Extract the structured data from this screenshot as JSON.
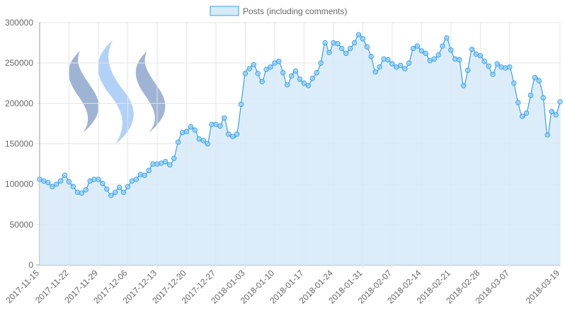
{
  "chart_data": {
    "type": "area",
    "legend": {
      "position": "top-center",
      "label": "Posts (including comments)"
    },
    "colors": {
      "line": "#36a2eb",
      "fill": "#d6eaf8",
      "point_fill": "#9ad0f5",
      "grid": "#e5e5e5",
      "axis": "#999999",
      "text": "#666666"
    },
    "grid": true,
    "y_axis": {
      "min": 0,
      "max": 300000,
      "ticks": [
        0,
        50000,
        100000,
        150000,
        200000,
        250000,
        300000
      ]
    },
    "x_axis": {
      "start": "2017-11-15",
      "end": "2018-03-19",
      "tick_labels": [
        "2017-11-15",
        "2017-11-22",
        "2017-11-29",
        "2017-12-06",
        "2017-12-13",
        "2017-12-20",
        "2017-12-27",
        "2018-01-03",
        "2018-01-10",
        "2018-01-17",
        "2018-01-24",
        "2018-01-31",
        "2018-02-07",
        "2018-02-14",
        "2018-02-21",
        "2018-02-28",
        "2018-03-07",
        "2018-03-19"
      ]
    },
    "series": [
      {
        "name": "Posts (including comments)",
        "values": [
          106000,
          104000,
          102000,
          97000,
          100000,
          104000,
          111000,
          103000,
          97000,
          90000,
          89000,
          93000,
          104000,
          106000,
          106000,
          101000,
          94000,
          86000,
          90000,
          96000,
          90000,
          97000,
          104000,
          106000,
          112000,
          111000,
          117000,
          125000,
          125000,
          126000,
          128000,
          124000,
          132000,
          152000,
          164000,
          165000,
          171000,
          167000,
          156000,
          154000,
          150000,
          174000,
          174000,
          172000,
          182000,
          162000,
          159000,
          162000,
          199000,
          237000,
          243000,
          248000,
          237000,
          227000,
          242000,
          245000,
          250000,
          252000,
          238000,
          223000,
          234000,
          240000,
          230000,
          225000,
          222000,
          231000,
          238000,
          250000,
          275000,
          263000,
          275000,
          274000,
          268000,
          262000,
          268000,
          275000,
          285000,
          280000,
          270000,
          258000,
          239000,
          245000,
          255000,
          254000,
          249000,
          245000,
          247000,
          243000,
          250000,
          268000,
          271000,
          265000,
          262000,
          253000,
          255000,
          260000,
          271000,
          281000,
          266000,
          255000,
          254000,
          222000,
          241000,
          267000,
          261000,
          259000,
          252000,
          246000,
          236000,
          249000,
          245000,
          244000,
          245000,
          225000,
          201000,
          184000,
          188000,
          210000,
          232000,
          228000,
          207000,
          161000,
          190000,
          186000,
          202000
        ]
      }
    ]
  },
  "decoration": {
    "logo": "steem-logo-icon"
  }
}
